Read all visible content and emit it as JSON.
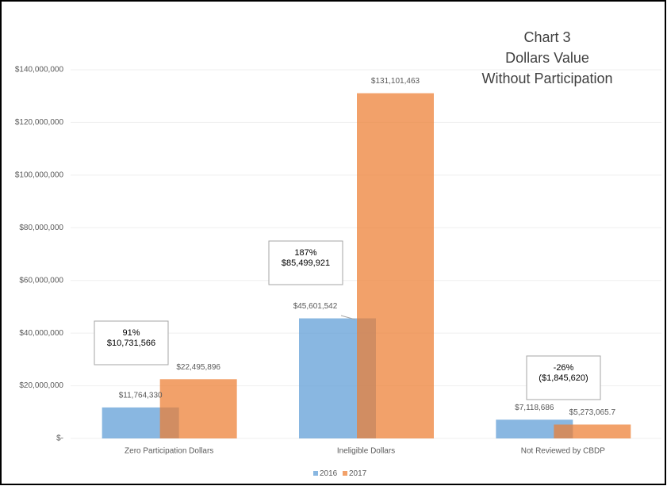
{
  "chart_data": {
    "type": "bar",
    "title": [
      "Chart 3",
      "Dollars Value",
      "Without Participation"
    ],
    "categories": [
      "Zero Participation  Dollars",
      "Ineligible Dollars",
      "Not Reviewed by CBDP"
    ],
    "series": [
      {
        "name": "2016",
        "color": "#5b9bd5",
        "values": [
          11764330,
          45601542,
          7118686
        ],
        "value_labels": [
          "$11,764,330",
          "$45,601,542",
          "$7,118,686"
        ]
      },
      {
        "name": "2017",
        "color": "#ed7d31",
        "values": [
          22495896,
          131101463,
          5273065.7
        ],
        "value_labels": [
          "$22,495,896",
          "$131,101,463",
          "$5,273,065.7"
        ]
      }
    ],
    "ylim": [
      0,
      140000000
    ],
    "yticks": [
      {
        "value": 0,
        "label": "$-"
      },
      {
        "value": 20000000,
        "label": "$20,000,000"
      },
      {
        "value": 40000000,
        "label": "$40,000,000"
      },
      {
        "value": 60000000,
        "label": "$60,000,000"
      },
      {
        "value": 80000000,
        "label": "$80,000,000"
      },
      {
        "value": 100000000,
        "label": "$100,000,000"
      },
      {
        "value": 120000000,
        "label": "$120,000,000"
      },
      {
        "value": 140000000,
        "label": "$140,000,000"
      }
    ],
    "grid": true,
    "legend": "bottom",
    "annotations": [
      [
        "91%",
        "$10,731,566"
      ],
      [
        "187%",
        "$85,499,921"
      ],
      [
        "-26%",
        "($1,845,620)"
      ]
    ]
  }
}
